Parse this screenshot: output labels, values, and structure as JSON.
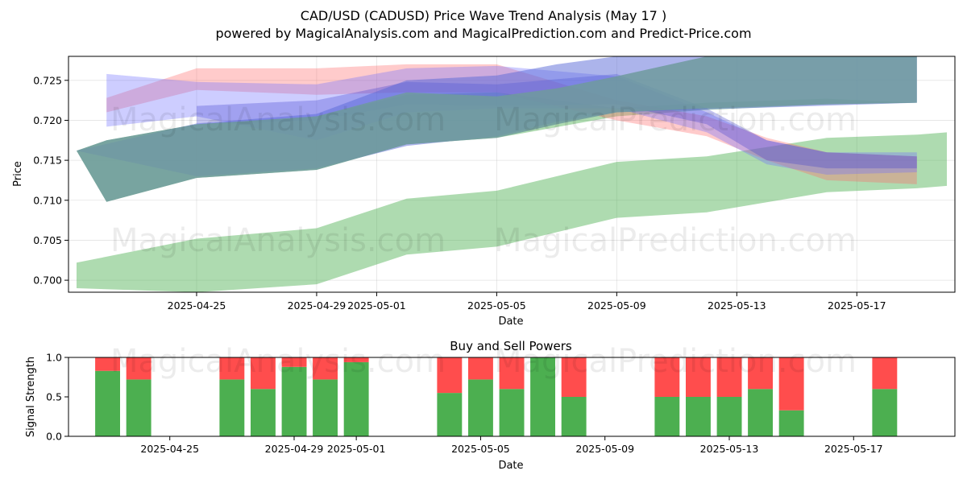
{
  "figure": {
    "title_line1": "CAD/USD (CADUSD) Price Wave Trend Analysis (May 17 )",
    "title_line2": "powered by MagicalAnalysis.com and MagicalPrediction.com and Predict-Price.com",
    "watermarks": [
      "MagicalAnalysis.com",
      "MagicalPrediction.com"
    ]
  },
  "chart_data": [
    {
      "type": "area",
      "xlabel": "Date",
      "ylabel": "Price",
      "ylim": [
        0.6985,
        0.728
      ],
      "grid": true,
      "x_tick_labels": [
        "2025-04-25",
        "2025-04-29",
        "2025-05-01",
        "2025-05-05",
        "2025-05-09",
        "2025-05-13",
        "2025-05-17"
      ],
      "y_ticks": [
        0.7,
        0.705,
        0.71,
        0.715,
        0.72,
        0.725
      ],
      "y_tick_labels": [
        "0.700",
        "0.705",
        "0.710",
        "0.715",
        "0.720",
        "0.725"
      ],
      "x_range": [
        "2025-04-21",
        "2025-05-20"
      ],
      "bands": [
        {
          "color": "#4caf50",
          "opacity": 0.45,
          "dates": [
            "2025-04-21",
            "2025-04-22",
            "2025-04-25",
            "2025-04-29",
            "2025-05-02",
            "2025-05-05",
            "2025-05-09",
            "2025-05-12",
            "2025-05-16",
            "2025-05-19"
          ],
          "upper": [
            0.7162,
            0.7175,
            0.7195,
            0.7205,
            0.7232,
            0.7235,
            0.7215,
            0.7222,
            0.7227,
            0.7222
          ],
          "lower": [
            0.7162,
            0.7098,
            0.7128,
            0.7138,
            0.717,
            0.7178,
            0.7205,
            0.7213,
            0.722,
            0.7222
          ]
        },
        {
          "color": "#4caf50",
          "opacity": 0.45,
          "dates": [
            "2025-04-21",
            "2025-04-25",
            "2025-04-29",
            "2025-05-02",
            "2025-05-05",
            "2025-05-09",
            "2025-05-12",
            "2025-05-16",
            "2025-05-19",
            "2025-05-20"
          ],
          "upper": [
            0.7022,
            0.7052,
            0.7065,
            0.7102,
            0.7112,
            0.7148,
            0.7155,
            0.7178,
            0.7182,
            0.7185
          ],
          "lower": [
            0.699,
            0.6985,
            0.6995,
            0.7032,
            0.7042,
            0.7078,
            0.7085,
            0.711,
            0.7115,
            0.7118
          ]
        },
        {
          "color": "#ff6b6b",
          "opacity": 0.35,
          "dates": [
            "2025-04-22",
            "2025-04-25",
            "2025-04-29",
            "2025-05-02",
            "2025-05-05",
            "2025-05-09",
            "2025-05-12",
            "2025-05-14",
            "2025-05-16",
            "2025-05-19"
          ],
          "upper": [
            0.7228,
            0.7265,
            0.7265,
            0.727,
            0.727,
            0.7225,
            0.7205,
            0.7178,
            0.716,
            0.7155
          ],
          "lower": [
            0.721,
            0.7238,
            0.7232,
            0.7235,
            0.7235,
            0.72,
            0.718,
            0.715,
            0.7125,
            0.712
          ]
        },
        {
          "color": "#7070ff",
          "opacity": 0.35,
          "dates": [
            "2025-04-22",
            "2025-04-25",
            "2025-04-29",
            "2025-05-02",
            "2025-05-05",
            "2025-05-09",
            "2025-05-12",
            "2025-05-14",
            "2025-05-16",
            "2025-05-19"
          ],
          "upper": [
            0.7258,
            0.7248,
            0.7245,
            0.7265,
            0.7268,
            0.7255,
            0.721,
            0.7175,
            0.716,
            0.716
          ],
          "lower": [
            0.7192,
            0.7205,
            0.7175,
            0.721,
            0.7215,
            0.7215,
            0.7185,
            0.7145,
            0.7132,
            0.7135
          ]
        },
        {
          "color": "#3a3acc",
          "opacity": 0.3,
          "dates": [
            "2025-04-25",
            "2025-04-29",
            "2025-05-02",
            "2025-05-05",
            "2025-05-09",
            "2025-05-12",
            "2025-05-14",
            "2025-05-16",
            "2025-05-19"
          ],
          "upper": [
            0.7218,
            0.7225,
            0.7248,
            0.7245,
            0.7258,
            0.7215,
            0.7175,
            0.716,
            0.7155
          ],
          "lower": [
            0.7195,
            0.72,
            0.722,
            0.7218,
            0.722,
            0.7195,
            0.715,
            0.714,
            0.714
          ]
        },
        {
          "color": "#5a6ad8",
          "opacity": 0.5,
          "dates": [
            "2025-04-21",
            "2025-04-25",
            "2025-04-29",
            "2025-05-02",
            "2025-05-05",
            "2025-05-07",
            "2025-05-09",
            "2025-05-19"
          ],
          "upper": [
            0.7162,
            0.7196,
            0.7208,
            0.725,
            0.7256,
            0.727,
            0.728,
            0.728
          ],
          "lower": [
            0.7162,
            0.713,
            0.714,
            0.7168,
            0.718,
            0.7198,
            0.721,
            0.7222
          ]
        },
        {
          "color": "#6f9a9e",
          "opacity": 0.85,
          "dates": [
            "2025-04-21",
            "2025-04-22",
            "2025-04-25",
            "2025-04-29",
            "2025-05-02",
            "2025-05-05",
            "2025-05-07",
            "2025-05-09",
            "2025-05-12",
            "2025-05-16",
            "2025-05-19"
          ],
          "upper": [
            0.7162,
            0.7175,
            0.7195,
            0.7205,
            0.7235,
            0.723,
            0.724,
            0.7255,
            0.728,
            0.728,
            0.728
          ],
          "lower": [
            0.7162,
            0.7098,
            0.7128,
            0.7138,
            0.717,
            0.7178,
            0.7195,
            0.721,
            0.7215,
            0.722,
            0.7222
          ]
        }
      ]
    },
    {
      "type": "bar",
      "title": "Buy and Sell Powers",
      "xlabel": "Date",
      "ylabel": "Signal Strength",
      "ylim": [
        0,
        1
      ],
      "y_ticks": [
        0.0,
        0.5,
        1.0
      ],
      "y_tick_labels": [
        "0.0",
        "0.5",
        "1.0"
      ],
      "x_tick_labels": [
        "2025-04-25",
        "2025-04-29",
        "2025-05-01",
        "2025-05-05",
        "2025-05-09",
        "2025-05-13",
        "2025-05-17"
      ],
      "x_range": [
        "2025-04-22",
        "2025-05-20"
      ],
      "colors": {
        "buy": "#4caf50",
        "sell": "#ff4d4d"
      },
      "dates": [
        "2025-04-23",
        "2025-04-24",
        "2025-04-27",
        "2025-04-28",
        "2025-04-29",
        "2025-04-30",
        "2025-05-01",
        "2025-05-04",
        "2025-05-05",
        "2025-05-06",
        "2025-05-07",
        "2025-05-08",
        "2025-05-11",
        "2025-05-12",
        "2025-05-13",
        "2025-05-14",
        "2025-05-15",
        "2025-05-18"
      ],
      "buy": [
        0.83,
        0.72,
        0.72,
        0.6,
        0.88,
        0.72,
        0.94,
        0.55,
        0.72,
        0.6,
        1.0,
        0.5,
        0.5,
        0.5,
        0.5,
        0.6,
        0.33,
        0.6
      ],
      "sell": [
        0.17,
        0.28,
        0.28,
        0.4,
        0.12,
        0.28,
        0.06,
        0.45,
        0.28,
        0.4,
        0.0,
        0.5,
        0.5,
        0.5,
        0.5,
        0.4,
        0.67,
        0.4
      ]
    }
  ]
}
